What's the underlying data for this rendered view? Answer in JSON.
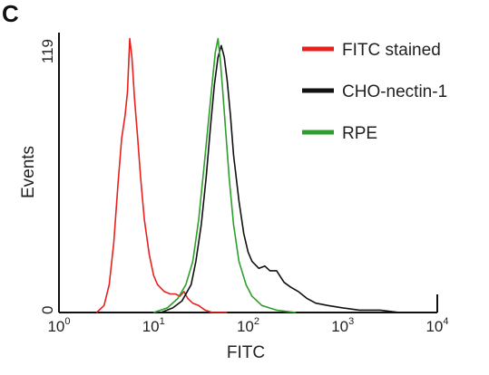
{
  "panel_label": "C",
  "chart_data": {
    "type": "line",
    "title": "",
    "xlabel": "FITC",
    "ylabel": "Events",
    "x_scale": "log",
    "xlim": [
      1,
      10000
    ],
    "ylim": [
      0,
      119
    ],
    "x_ticks": [
      {
        "base": "10",
        "exp": "0",
        "value": 1
      },
      {
        "base": "10",
        "exp": "1",
        "value": 10
      },
      {
        "base": "10",
        "exp": "2",
        "value": 100
      },
      {
        "base": "10",
        "exp": "3",
        "value": 1000
      },
      {
        "base": "10",
        "exp": "4",
        "value": 10000
      }
    ],
    "y_ticks": [
      {
        "label": "0",
        "value": 0
      },
      {
        "label": "119",
        "value": 119
      }
    ],
    "legend_position": "top-right",
    "series": [
      {
        "name": "FITC stained",
        "color": "#e8211f",
        "points": [
          [
            2.5,
            0
          ],
          [
            3,
            3
          ],
          [
            3.4,
            12
          ],
          [
            3.8,
            30
          ],
          [
            4.2,
            55
          ],
          [
            4.6,
            75
          ],
          [
            5,
            85
          ],
          [
            5.3,
            95
          ],
          [
            5.6,
            118
          ],
          [
            5.9,
            110
          ],
          [
            6.3,
            92
          ],
          [
            6.8,
            75
          ],
          [
            7.3,
            58
          ],
          [
            8,
            40
          ],
          [
            9,
            25
          ],
          [
            10,
            16
          ],
          [
            11,
            12
          ],
          [
            13,
            9
          ],
          [
            15,
            8
          ],
          [
            17,
            8
          ],
          [
            19,
            7
          ],
          [
            21,
            9
          ],
          [
            23,
            6
          ],
          [
            26,
            4
          ],
          [
            30,
            3
          ],
          [
            35,
            1
          ],
          [
            42,
            0
          ],
          [
            60,
            0
          ]
        ]
      },
      {
        "name": "CHO-nectin-1",
        "color": "#111111",
        "points": [
          [
            12,
            0
          ],
          [
            16,
            2
          ],
          [
            20,
            5
          ],
          [
            25,
            12
          ],
          [
            28,
            22
          ],
          [
            32,
            38
          ],
          [
            36,
            58
          ],
          [
            40,
            80
          ],
          [
            44,
            98
          ],
          [
            48,
            110
          ],
          [
            52,
            115
          ],
          [
            56,
            110
          ],
          [
            60,
            100
          ],
          [
            65,
            85
          ],
          [
            70,
            68
          ],
          [
            80,
            48
          ],
          [
            90,
            34
          ],
          [
            100,
            26
          ],
          [
            110,
            22
          ],
          [
            130,
            19
          ],
          [
            150,
            20
          ],
          [
            170,
            18
          ],
          [
            200,
            18
          ],
          [
            240,
            13
          ],
          [
            280,
            11
          ],
          [
            340,
            9
          ],
          [
            420,
            6
          ],
          [
            520,
            4
          ],
          [
            700,
            3
          ],
          [
            1000,
            2
          ],
          [
            1500,
            1
          ],
          [
            2500,
            1
          ],
          [
            4000,
            0
          ]
        ]
      },
      {
        "name": "RPE",
        "color": "#2e9e2e",
        "points": [
          [
            10,
            0
          ],
          [
            14,
            2
          ],
          [
            18,
            6
          ],
          [
            22,
            12
          ],
          [
            26,
            22
          ],
          [
            30,
            40
          ],
          [
            34,
            62
          ],
          [
            38,
            82
          ],
          [
            42,
            100
          ],
          [
            45,
            112
          ],
          [
            48,
            118
          ],
          [
            51,
            108
          ],
          [
            54,
            95
          ],
          [
            58,
            78
          ],
          [
            63,
            58
          ],
          [
            70,
            38
          ],
          [
            80,
            22
          ],
          [
            95,
            12
          ],
          [
            110,
            7
          ],
          [
            140,
            3
          ],
          [
            200,
            1
          ],
          [
            320,
            0
          ]
        ]
      }
    ]
  }
}
